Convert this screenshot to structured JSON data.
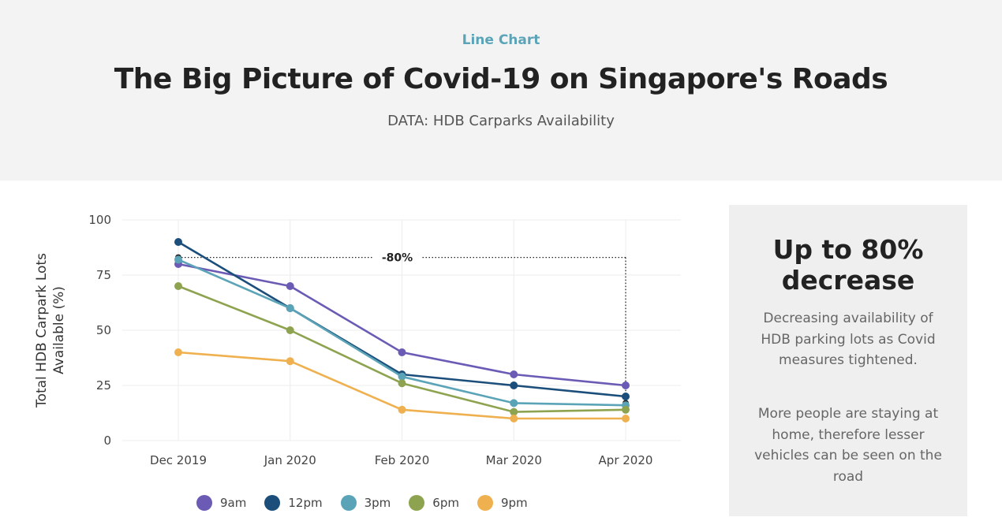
{
  "header": {
    "kicker": "Line Chart",
    "title": "The Big Picture of Covid-19 on Singapore's Roads",
    "subtitle": "DATA: HDB Carparks Availability"
  },
  "side_panel": {
    "headline": "Up to 80% decrease",
    "paragraph1": "Decreasing availability of HDB parking lots as Covid measures tightened.",
    "paragraph2": "More people are staying at home, therefore lesser vehicles can be seen on the road"
  },
  "chart_data": {
    "type": "line",
    "title": "",
    "xlabel": "",
    "ylabel": "Total HDB Carpark Lots Available (%)",
    "categories": [
      "Dec 2019",
      "Jan 2020",
      "Feb 2020",
      "Mar 2020",
      "Apr 2020"
    ],
    "ylim": [
      0,
      100
    ],
    "yticks": [
      0,
      25,
      50,
      75,
      100
    ],
    "grid": true,
    "legend_position": "bottom",
    "series": [
      {
        "name": "9am",
        "color": "#6b5bb5",
        "values": [
          80,
          70,
          40,
          30,
          25
        ]
      },
      {
        "name": "12pm",
        "color": "#1b4e7a",
        "values": [
          90,
          60,
          30,
          25,
          20
        ]
      },
      {
        "name": "3pm",
        "color": "#5ba4b8",
        "values": [
          82,
          60,
          29,
          17,
          16
        ]
      },
      {
        "name": "6pm",
        "color": "#8ea34f",
        "values": [
          70,
          50,
          26,
          13,
          14
        ]
      },
      {
        "name": "9pm",
        "color": "#efb14f",
        "values": [
          40,
          36,
          14,
          10,
          10
        ]
      }
    ],
    "annotation": {
      "label": "-80%",
      "from_category": "Dec 2019",
      "to_category": "Apr 2020",
      "from_value": 83,
      "to_value": 17,
      "color": "#222222"
    }
  }
}
